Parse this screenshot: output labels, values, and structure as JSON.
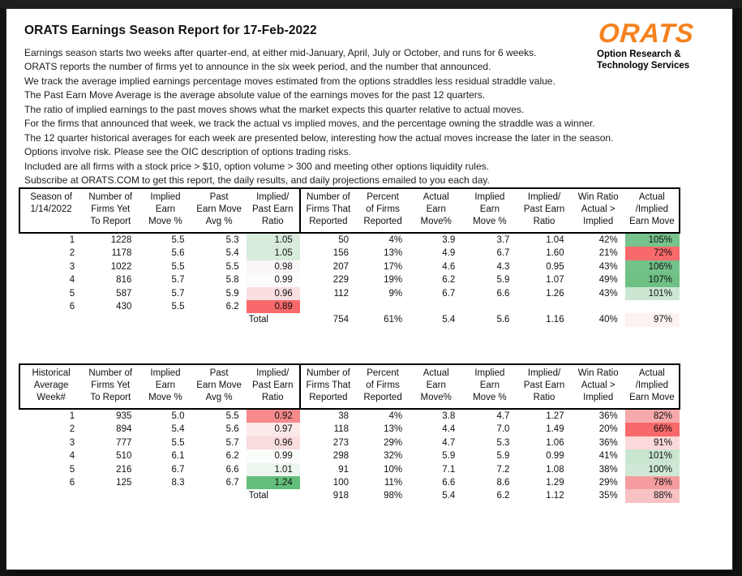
{
  "page": {
    "title": "ORATS Earnings Season Report for 17-Feb-2022",
    "intro_lines": [
      "Earnings season starts two weeks after quarter-end, at either mid-January, April, July or October, and runs for 6 weeks.",
      "ORATS reports the number of firms yet to announce in the six week period, and the number that announced.",
      "We track the average implied earnings percentage moves estimated from the options straddles less residual straddle value.",
      "The Past Earn Move Average is the average absolute value of the earnings moves for the past 12 quarters.",
      "The ratio of implied earnings to the past moves shows what the market expects this quarter relative to actual moves.",
      "For the firms that announced that week, we track the actual vs implied moves, and the percentage owning the straddle was a winner.",
      "The 12 quarter historical averages for each week are presented below, interesting how the actual moves increase the later in the season.",
      "Options involve risk. Please see the OIC description of options trading risks.",
      "Included are all firms with a stock price > $10, option volume > 300 and meeting other options liquidity rules.",
      "Subscribe at ORATS.COM to get this report, the daily results, and daily projections emailed to you each day."
    ]
  },
  "logo": {
    "wordmark": "ORATS",
    "subtitle_line1": "Option Research &",
    "subtitle_line2": "Technology Services",
    "brand_orange": "#f58220"
  },
  "colors": {
    "scale_red": "#f8696b",
    "scale_green": "#63be7b",
    "border_black": "#000000"
  },
  "table1": {
    "headers": [
      "Season of\n1/14/2022",
      "Number of\nFirms Yet\nTo Report",
      "Implied\nEarn\nMove %",
      "Past\nEarn Move\nAvg %",
      "Implied/\nPast Earn\nRatio",
      "Number of\nFirms That\nReported",
      "Percent\nof Firms\nReported",
      "Actual\nEarn\nMove%",
      "Implied\nEarn\nMove %",
      "Implied/\nPast Earn\nRatio",
      "Win Ratio\nActual >\nImplied",
      "Actual\n/Implied\nEarn Move"
    ],
    "rows": [
      {
        "cells": [
          "1",
          "1228",
          "5.5",
          "5.3",
          "1.05",
          "50",
          "4%",
          "3.9",
          "3.7",
          "1.04",
          "42%",
          "105%"
        ],
        "bg": {
          "4": "#d9ecdc",
          "11": "#76c38c"
        }
      },
      {
        "cells": [
          "2",
          "1178",
          "5.6",
          "5.4",
          "1.05",
          "156",
          "13%",
          "4.9",
          "6.7",
          "1.60",
          "21%",
          "72%"
        ],
        "bg": {
          "4": "#d9ecdc",
          "11": "#f8696b"
        }
      },
      {
        "cells": [
          "3",
          "1022",
          "5.5",
          "5.5",
          "0.98",
          "207",
          "17%",
          "4.6",
          "4.3",
          "0.95",
          "43%",
          "106%"
        ],
        "bg": {
          "4": "#fbf6f6",
          "11": "#73c289"
        }
      },
      {
        "cells": [
          "4",
          "816",
          "5.7",
          "5.8",
          "0.99",
          "229",
          "19%",
          "6.2",
          "5.9",
          "1.07",
          "49%",
          "107%"
        ],
        "bg": {
          "4": "#fcfcfc",
          "11": "#6ec085"
        }
      },
      {
        "cells": [
          "5",
          "587",
          "5.7",
          "5.9",
          "0.96",
          "112",
          "9%",
          "6.7",
          "6.6",
          "1.26",
          "43%",
          "101%"
        ],
        "bg": {
          "4": "#f9dfe0",
          "11": "#cbe7d2"
        }
      },
      {
        "cells": [
          "6",
          "430",
          "5.5",
          "6.2",
          "0.89",
          "",
          "",
          "",
          "",
          "",
          "",
          ""
        ],
        "bg": {
          "4": "#f8696b"
        }
      },
      {
        "cells": [
          "",
          "",
          "",
          "",
          "Total",
          "754",
          "61%",
          "5.4",
          "5.6",
          "1.16",
          "40%",
          "97%"
        ],
        "bg": {
          "11": "#fdf2f2"
        }
      }
    ]
  },
  "table2": {
    "headers": [
      "Historical\nAverage\nWeek#",
      "Number of\nFirms Yet\nTo Report",
      "Implied\nEarn\nMove %",
      "Past\nEarn Move\nAvg %",
      "Implied/\nPast Earn\nRatio",
      "Number of\nFirms That\nReported",
      "Percent\nof Firms\nReported",
      "Actual\nEarn\nMove%",
      "Implied\nEarn\nMove %",
      "Implied/\nPast Earn\nRatio",
      "Win Ratio\nActual >\nImplied",
      "Actual\n/Implied\nEarn Move"
    ],
    "rows": [
      {
        "cells": [
          "1",
          "935",
          "5.0",
          "5.5",
          "0.92",
          "38",
          "4%",
          "3.8",
          "4.7",
          "1.27",
          "36%",
          "82%"
        ],
        "bg": {
          "4": "#f5898b",
          "11": "#f6a9aa"
        }
      },
      {
        "cells": [
          "2",
          "894",
          "5.4",
          "5.6",
          "0.97",
          "118",
          "13%",
          "4.4",
          "7.0",
          "1.49",
          "20%",
          "66%"
        ],
        "bg": {
          "4": "#fbe9ea",
          "11": "#f8696b"
        }
      },
      {
        "cells": [
          "3",
          "777",
          "5.5",
          "5.7",
          "0.96",
          "273",
          "29%",
          "4.7",
          "5.3",
          "1.06",
          "36%",
          "91%"
        ],
        "bg": {
          "4": "#f9dcdd",
          "11": "#fbd9da"
        }
      },
      {
        "cells": [
          "4",
          "510",
          "6.1",
          "6.2",
          "0.99",
          "298",
          "32%",
          "5.9",
          "5.9",
          "0.99",
          "41%",
          "101%"
        ],
        "bg": {
          "4": "#fbfdfb",
          "11": "#c9e6d0"
        }
      },
      {
        "cells": [
          "5",
          "216",
          "6.7",
          "6.6",
          "1.01",
          "91",
          "10%",
          "7.1",
          "7.2",
          "1.08",
          "38%",
          "100%"
        ],
        "bg": {
          "4": "#ecf5ee",
          "11": "#cfe8d5"
        }
      },
      {
        "cells": [
          "6",
          "125",
          "8.3",
          "6.7",
          "1.24",
          "100",
          "11%",
          "6.6",
          "8.6",
          "1.29",
          "29%",
          "78%"
        ],
        "bg": {
          "4": "#63be7b",
          "11": "#f59c9e"
        }
      },
      {
        "cells": [
          "",
          "",
          "",
          "",
          "Total",
          "918",
          "98%",
          "5.4",
          "6.2",
          "1.12",
          "35%",
          "88%"
        ],
        "bg": {
          "11": "#f8c2c4"
        }
      }
    ]
  }
}
